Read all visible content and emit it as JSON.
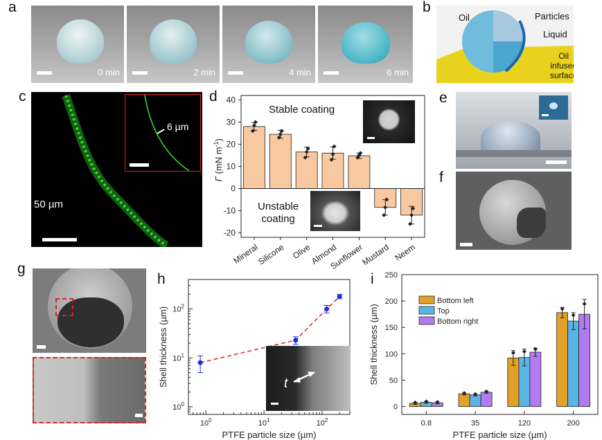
{
  "panel_letters": {
    "a": "a",
    "b": "b",
    "c": "c",
    "d": "d",
    "e": "e",
    "f": "f",
    "g": "g",
    "h": "h",
    "i": "i"
  },
  "panel_a": {
    "times": [
      "0 min",
      "2 min",
      "4 min",
      "6 min"
    ]
  },
  "panel_b": {
    "labels": {
      "oil": "Oil",
      "particles": "Particles",
      "liquid": "Liquid",
      "surface_1": "Oil",
      "surface_2": "infused",
      "surface_3": "surface"
    }
  },
  "panel_c": {
    "main_label": "50 µm",
    "inset_label": "6 µm"
  },
  "panel_d": {
    "stable_label": "Stable coating",
    "unstable_line1": "Unstable",
    "unstable_line2": "coating",
    "ylabel_sym": "Γ",
    "ylabel_unit": "(mN m",
    "ylabel_exp": "-1",
    "ylabel_close": ")"
  },
  "panel_h": {
    "xlabel": "PTFE particle size (µm)",
    "ylabel": "Shell thickness (µm)",
    "inset_label": "t"
  },
  "panel_i": {
    "xlabel": "PTFE particle size (µm)",
    "ylabel": "Shell thickness (µm)"
  },
  "colors": {
    "bar_orange": "#f8c8a0",
    "bar_gold": "#e3a128",
    "bar_blue": "#5ab4e6",
    "bar_purple": "#b27cf0",
    "h_line": "#e03030",
    "h_point": "#1f2ed8",
    "green": "#27c027",
    "inset_red": "#e02020"
  },
  "chart_data": [
    {
      "id": "d",
      "type": "bar",
      "categories": [
        "Mineral",
        "Silicone",
        "Olive",
        "Almond",
        "Sunflower",
        "Mustard",
        "Neem"
      ],
      "values": [
        28,
        24.5,
        16.5,
        16,
        14.8,
        -8.5,
        -12
      ],
      "errors": [
        1.8,
        1.8,
        2.2,
        2.8,
        1.2,
        3.5,
        4
      ],
      "points": [
        [
          26,
          28.5,
          30
        ],
        [
          23,
          24.5,
          26
        ],
        [
          14,
          16.5,
          18
        ],
        [
          13,
          15.5,
          19
        ],
        [
          14,
          15,
          16
        ],
        [
          -12,
          -8.5,
          -5
        ],
        [
          -16,
          -12,
          -9
        ]
      ],
      "ylabel": "Γ (mN m-1)",
      "ylim": [
        -22,
        42
      ],
      "yticks": [
        -20,
        -10,
        0,
        10,
        20,
        30,
        40
      ]
    },
    {
      "id": "h",
      "type": "scatter",
      "x": [
        0.8,
        35,
        120,
        200
      ],
      "y": [
        8,
        23,
        100,
        180
      ],
      "yerr_low": [
        5,
        19,
        83,
        162
      ],
      "yerr_high": [
        11,
        27,
        118,
        198
      ],
      "xscale": "log",
      "yscale": "log",
      "xlim": [
        0.5,
        300
      ],
      "ylim": [
        0.7,
        400
      ],
      "xticks": [
        "10^0",
        "10^1",
        "10^2"
      ],
      "yticks": [
        "10^0",
        "10^1",
        "10^2"
      ],
      "xlabel": "PTFE particle size (µm)",
      "ylabel": "Shell thickness (µm)"
    },
    {
      "id": "i",
      "type": "bar",
      "categories": [
        "0.8",
        "35",
        "120",
        "200"
      ],
      "series": [
        {
          "name": "Bottom left",
          "values": [
            6,
            24,
            92,
            178
          ],
          "errors": [
            2,
            2,
            14,
            10
          ]
        },
        {
          "name": "Top",
          "values": [
            8,
            22,
            93,
            162
          ],
          "errors": [
            2,
            2,
            16,
            16
          ]
        },
        {
          "name": "Bottom right",
          "values": [
            7,
            27,
            103,
            175
          ],
          "errors": [
            2,
            2,
            8,
            28
          ]
        }
      ],
      "ylim": [
        -15,
        250
      ],
      "yticks": [
        0,
        50,
        100,
        150,
        200,
        250
      ],
      "xlabel": "PTFE particle size (µm)",
      "ylabel": "Shell thickness (µm)",
      "legend": "top-left"
    }
  ]
}
